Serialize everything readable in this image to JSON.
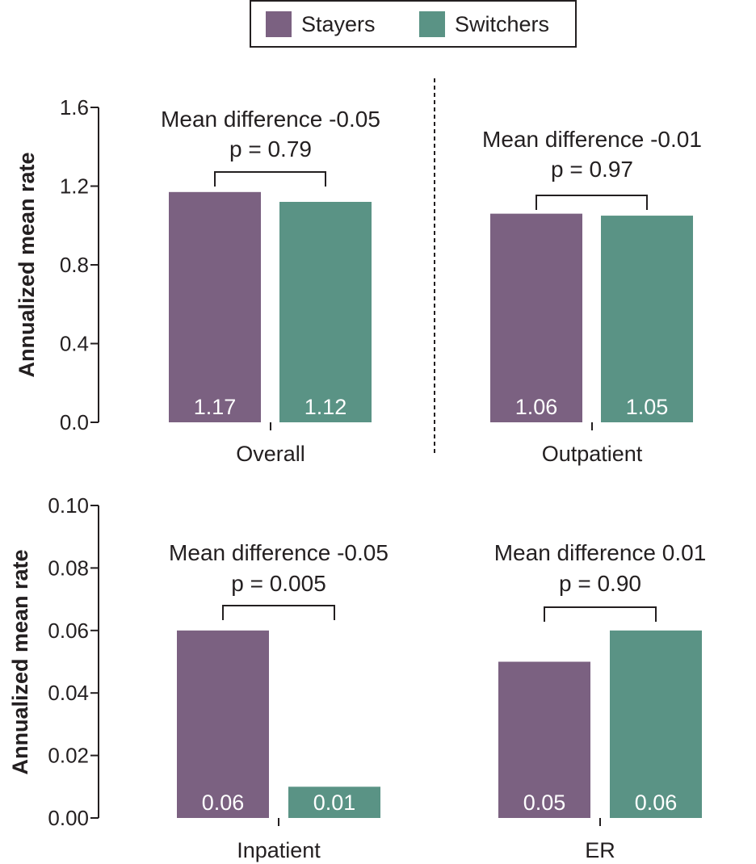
{
  "legend": {
    "items": [
      {
        "label": "Stayers",
        "color": "#7b6181"
      },
      {
        "label": "Switchers",
        "color": "#5a9385"
      }
    ]
  },
  "chart_data": [
    {
      "type": "bar",
      "ylabel": "Annualized mean rate",
      "ylim": [
        0,
        1.6
      ],
      "yticks": [
        "0.0",
        "0.4",
        "0.8",
        "1.2",
        "1.6"
      ],
      "categories": [
        "Overall",
        "Outpatient"
      ],
      "series": [
        {
          "name": "Stayers",
          "values": [
            1.17,
            1.06
          ],
          "labels": [
            "1.17",
            "1.06"
          ]
        },
        {
          "name": "Switchers",
          "values": [
            1.12,
            1.05
          ],
          "labels": [
            "1.12",
            "1.05"
          ]
        }
      ],
      "annotations": [
        {
          "line1": "Mean difference -0.05",
          "line2": "p = 0.79"
        },
        {
          "line1": "Mean difference -0.01",
          "line2": "p = 0.97"
        }
      ],
      "divider": "dashed"
    },
    {
      "type": "bar",
      "ylabel": "Annualized mean rate",
      "ylim": [
        0,
        0.1
      ],
      "yticks": [
        "0.00",
        "0.02",
        "0.04",
        "0.06",
        "0.08",
        "0.10"
      ],
      "categories": [
        "Inpatient",
        "ER"
      ],
      "series": [
        {
          "name": "Stayers",
          "values": [
            0.06,
            0.05
          ],
          "labels": [
            "0.06",
            "0.05"
          ]
        },
        {
          "name": "Switchers",
          "values": [
            0.01,
            0.06
          ],
          "labels": [
            "0.01",
            "0.06"
          ]
        }
      ],
      "annotations": [
        {
          "line1": "Mean difference -0.05",
          "line2": "p = 0.005"
        },
        {
          "line1": "Mean difference 0.01",
          "line2": "p = 0.90"
        }
      ]
    }
  ]
}
